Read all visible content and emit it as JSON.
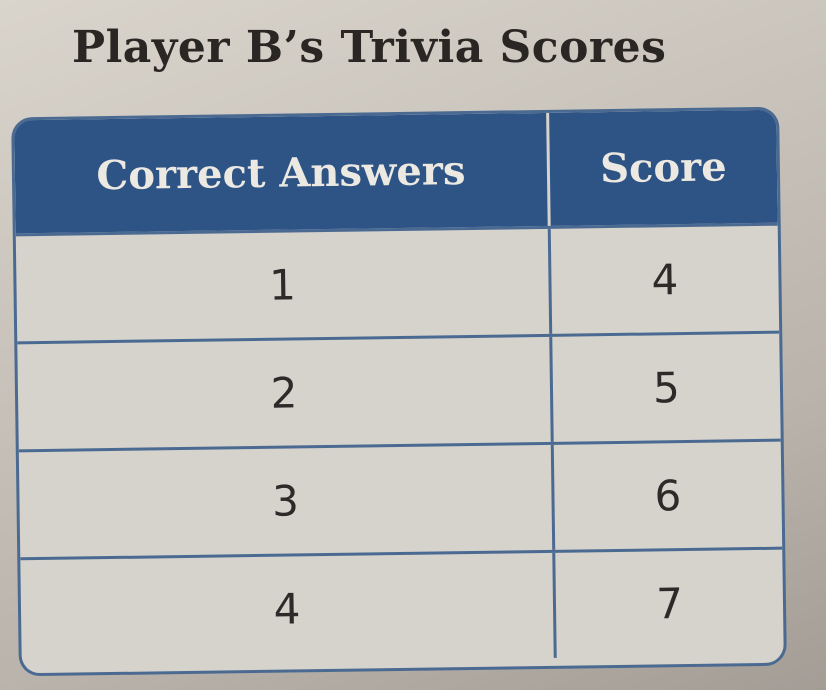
{
  "title": "Player B’s Trivia Scores",
  "headers": [
    "Correct Answers",
    "Score"
  ],
  "rows": [
    [
      "1",
      "4"
    ],
    [
      "2",
      "5"
    ],
    [
      "3",
      "6"
    ],
    [
      "4",
      "7"
    ]
  ]
}
